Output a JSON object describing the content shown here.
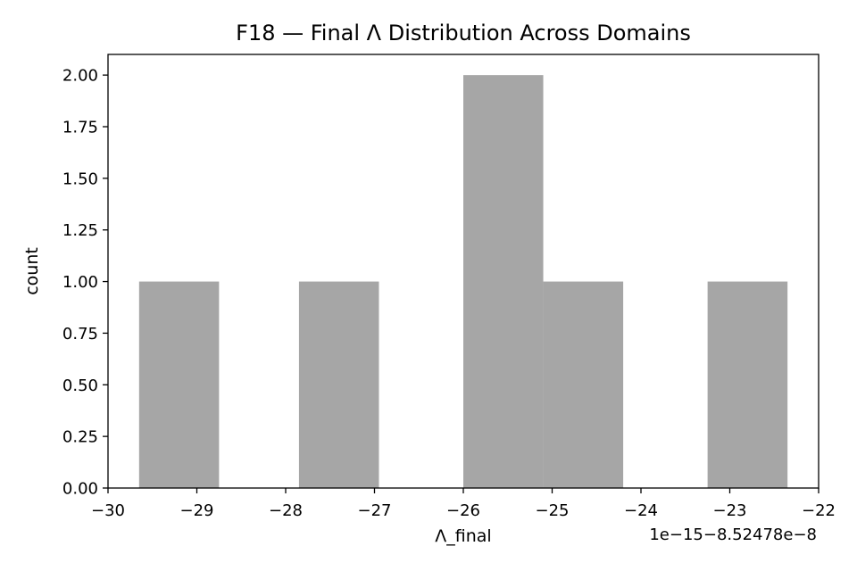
{
  "chart_data": {
    "type": "bar",
    "title": "F18 — Final Λ Distribution Across Domains",
    "xlabel": "Λ_final",
    "ylabel": "count",
    "x_offset_label": "1e−15−8.52478e−8",
    "xlim": [
      -30,
      -22
    ],
    "ylim": [
      0,
      2.1
    ],
    "x_ticks": [
      -30,
      -29,
      -28,
      -27,
      -26,
      -25,
      -24,
      -23,
      -22
    ],
    "x_tick_labels": [
      "−30",
      "−29",
      "−28",
      "−27",
      "−26",
      "−25",
      "−24",
      "−23",
      "−22"
    ],
    "y_ticks": [
      0,
      0.25,
      0.5,
      0.75,
      1.0,
      1.25,
      1.5,
      1.75,
      2.0
    ],
    "y_tick_labels": [
      "0.00",
      "0.25",
      "0.50",
      "0.75",
      "1.00",
      "1.25",
      "1.50",
      "1.75",
      "2.00"
    ],
    "bins": [
      {
        "x0": -29.65,
        "x1": -28.75,
        "count": 1
      },
      {
        "x0": -27.85,
        "x1": -26.95,
        "count": 1
      },
      {
        "x0": -26.0,
        "x1": -25.1,
        "count": 2
      },
      {
        "x0": -25.1,
        "x1": -24.2,
        "count": 1
      },
      {
        "x0": -23.25,
        "x1": -22.35,
        "count": 1
      }
    ],
    "bar_color": "#a6a6a6",
    "grid": false,
    "legend": "none"
  }
}
